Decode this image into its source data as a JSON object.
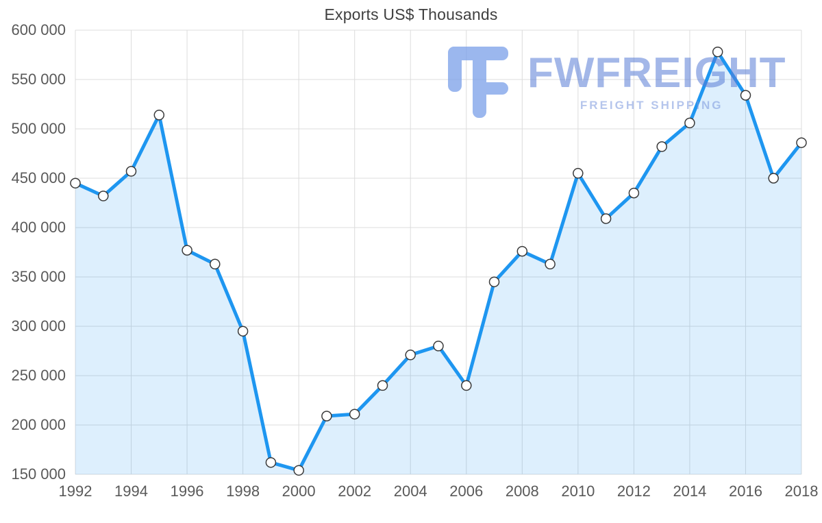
{
  "chart_data": {
    "type": "area",
    "title": "Exports US$ Thousands",
    "x": [
      1992,
      1993,
      1994,
      1995,
      1996,
      1997,
      1998,
      1999,
      2000,
      2001,
      2002,
      2003,
      2004,
      2005,
      2006,
      2007,
      2008,
      2009,
      2010,
      2011,
      2012,
      2013,
      2014,
      2015,
      2016,
      2017,
      2018
    ],
    "values": [
      445000,
      432000,
      457000,
      514000,
      377000,
      363000,
      295000,
      162000,
      154000,
      209000,
      211000,
      240000,
      271000,
      280000,
      240000,
      345000,
      376000,
      363000,
      455000,
      409000,
      435000,
      482000,
      506000,
      578000,
      534000,
      450000,
      486000
    ],
    "ylim": [
      150000,
      600000
    ],
    "ytick_step": 50000,
    "xtick_step": 2,
    "grid": true,
    "legend_position": "none",
    "line_color": "#1E96F0",
    "area_fill": "rgba(30,150,240,0.15)",
    "marker_fill": "#FFFFFF",
    "marker_stroke": "#3A3A3A",
    "grid_color": "#DCDCDC",
    "label_color": "#595959",
    "title_color": "#3F3F3F"
  },
  "watermark": {
    "name": "FWFREIGHT",
    "tagline": "FREIGHT SHIPPING",
    "color": "#7FA3EA"
  }
}
